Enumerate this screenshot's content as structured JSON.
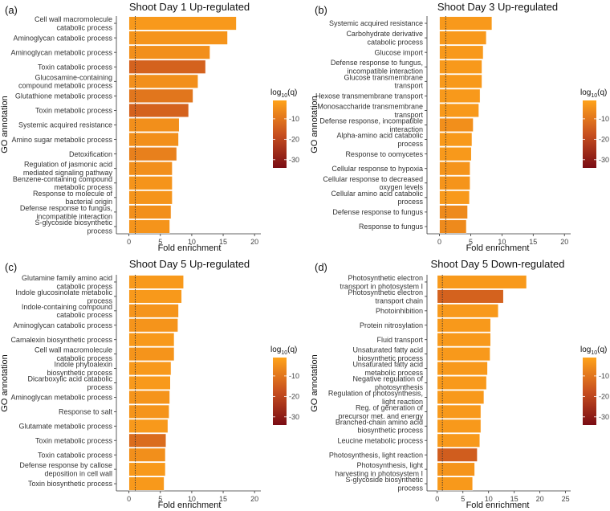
{
  "figure": {
    "y_axis_title": "GO annotation",
    "x_axis_title": "Fold enrichment"
  },
  "colorbar": {
    "title_prefix": "log",
    "title_sub": "10",
    "title_suffix": "(q)",
    "ticks": [
      -10,
      -20,
      -30
    ],
    "range": [
      -34,
      -1
    ],
    "colors": {
      "low": "#7a0c14",
      "mid": "#c8501f",
      "high": "#ffa31a"
    }
  },
  "colors": {
    "bar_stroke": "#ffffff",
    "ref_line": "#333333",
    "axis": "#333333"
  },
  "chart_data": [
    {
      "type": "bar",
      "orientation": "horizontal",
      "panel_label": "(a)",
      "title": "Shoot Day 1 Up-regulated",
      "xlabel": "Fold enrichment",
      "ylabel": "GO annotation",
      "xlim": [
        -2,
        21
      ],
      "xticks": [
        0,
        5,
        10,
        15,
        20
      ],
      "reference_line": 1,
      "categories": [
        [
          "Cell wall macromolecule",
          "catabolic process"
        ],
        [
          "Aminoglycan catabolic process"
        ],
        [
          "Aminoglycan metabolic process"
        ],
        [
          "Toxin catabolic process"
        ],
        [
          "Glucosamine-containing",
          "compound metabolic process"
        ],
        [
          "Glutathione metabolic process"
        ],
        [
          "Toxin metabolic process"
        ],
        [
          "Systemic acquired resistance"
        ],
        [
          "Amino sugar metabolic process"
        ],
        [
          "Detoxification"
        ],
        [
          "Regulation of jasmonic acid",
          "mediated signaling pathway"
        ],
        [
          "Benzene-containing compound",
          "metabolic process"
        ],
        [
          "Response to molecule of",
          "bacterial origin"
        ],
        [
          "Defense response to fungus,",
          "incompatible interaction"
        ],
        [
          "S-glycoside biosynthetic",
          "process"
        ]
      ],
      "values": [
        17.1,
        15.7,
        12.9,
        12.2,
        11.0,
        10.2,
        9.5,
        8.0,
        7.9,
        7.6,
        6.9,
        6.9,
        6.9,
        6.7,
        6.5
      ],
      "log10q": [
        -3,
        -4,
        -5,
        -14,
        -5,
        -10,
        -14,
        -5,
        -5,
        -8,
        -5,
        -4,
        -4,
        -5,
        -4
      ]
    },
    {
      "type": "bar",
      "orientation": "horizontal",
      "panel_label": "(b)",
      "title": "Shoot Day 3 Up-regulated",
      "xlabel": "Fold enrichment",
      "ylabel": "GO annotation",
      "xlim": [
        -2,
        21
      ],
      "xticks": [
        0,
        5,
        10,
        15,
        20
      ],
      "reference_line": 1,
      "categories": [
        [
          "Systemic acquired resistance"
        ],
        [
          "Carbohydrate derivative",
          "catabolic process"
        ],
        [
          "Glucose import"
        ],
        [
          "Defense response to fungus,",
          "incompatible interaction"
        ],
        [
          "Glucose transmembrane",
          "transport"
        ],
        [
          "Hexose transmembrane transport"
        ],
        [
          "Monosaccharide transmembrane",
          "transport"
        ],
        [
          "Defense response, incompatible",
          "interaction"
        ],
        [
          "Alpha-amino acid catabolic",
          "process"
        ],
        [
          "Response to oomycetes"
        ],
        [
          "Cellular response to hypoxia"
        ],
        [
          "Cellular response to decreased",
          "oxygen levels"
        ],
        [
          "Cellular amino acid catabolic",
          "process"
        ],
        [
          "Defense response to fungus"
        ],
        [
          "Response to fungus"
        ]
      ],
      "values": [
        8.4,
        7.5,
        7.0,
        6.8,
        6.8,
        6.5,
        6.3,
        5.4,
        5.2,
        5.1,
        4.9,
        4.9,
        4.8,
        4.5,
        4.3
      ],
      "log10q": [
        -3,
        -3,
        -3,
        -3,
        -3,
        -3,
        -3,
        -5,
        -3,
        -3,
        -4,
        -4,
        -3,
        -6,
        -6
      ]
    },
    {
      "type": "bar",
      "orientation": "horizontal",
      "panel_label": "(c)",
      "title": "Shoot Day 5 Up-regulated",
      "xlabel": "Fold enrichment",
      "ylabel": "GO annotation",
      "xlim": [
        -2,
        21
      ],
      "xticks": [
        0,
        5,
        10,
        15,
        20
      ],
      "reference_line": 1,
      "categories": [
        [
          "Glutamine family amino acid",
          "catabolic process"
        ],
        [
          "Indole glucosinolate metabolic",
          "process"
        ],
        [
          "Indole-containing compound",
          "catabolic process"
        ],
        [
          "Aminoglycan catabolic process"
        ],
        [
          "Camalexin biosynthetic process"
        ],
        [
          "Cell wall macromolecule",
          "catabolic process"
        ],
        [
          "Indole phytoalexin",
          "biosynthetic process"
        ],
        [
          "Dicarboxylic acid catabolic",
          "process"
        ],
        [
          "Aminoglycan metabolic process"
        ],
        [
          "Response to salt"
        ],
        [
          "Glutamate metabolic process"
        ],
        [
          "Toxin metabolic process"
        ],
        [
          "Toxin catabolic process"
        ],
        [
          "Defense response by callose",
          "deposition in cell wall"
        ],
        [
          "Toxin biosynthetic process"
        ]
      ],
      "values": [
        8.7,
        8.4,
        7.9,
        7.8,
        7.2,
        7.2,
        6.7,
        6.6,
        6.5,
        6.4,
        6.2,
        5.9,
        5.8,
        5.8,
        5.6
      ],
      "log10q": [
        -3,
        -3,
        -4,
        -4,
        -3,
        -4,
        -3,
        -3,
        -4,
        -4,
        -3,
        -12,
        -5,
        -3,
        -3
      ]
    },
    {
      "type": "bar",
      "orientation": "horizontal",
      "panel_label": "(d)",
      "title": "Shoot Day 5 Down-regulated",
      "xlabel": "Fold enrichment",
      "ylabel": "GO annotation",
      "xlim": [
        -2,
        26
      ],
      "xticks": [
        0,
        5,
        10,
        15,
        20,
        25
      ],
      "reference_line": 1,
      "categories": [
        [
          "Photosynthetic electron",
          "transport in photosystem I"
        ],
        [
          "Photosynthetic electron",
          "transport chain"
        ],
        [
          "Photoinhibition"
        ],
        [
          "Protein nitrosylation"
        ],
        [
          "Fluid transport"
        ],
        [
          "Unsaturated fatty acid",
          "biosynthetic process"
        ],
        [
          "Unsaturated fatty acid",
          "metabolic process"
        ],
        [
          "Negative regulation of",
          "photosynthesis"
        ],
        [
          "Regulation of photosynthesis,",
          "light reaction"
        ],
        [
          "Reg. of generation of",
          "precursor met. and energy"
        ],
        [
          "Branched-chain amino acid",
          "biosynthetic process"
        ],
        [
          "Leucine metabolic process"
        ],
        [
          "Photosynthesis, light reaction"
        ],
        [
          "Photosynthesis, light",
          "harvesting in photosystem I"
        ],
        [
          "S-glycoside biosynthetic",
          "process"
        ]
      ],
      "values": [
        17.4,
        12.9,
        11.9,
        10.4,
        10.4,
        10.3,
        9.8,
        9.6,
        9.1,
        8.5,
        8.5,
        8.3,
        7.8,
        7.3,
        6.9
      ],
      "log10q": [
        -3,
        -14,
        -3,
        -3,
        -3,
        -3,
        -3,
        -3,
        -3,
        -3,
        -3,
        -3,
        -15,
        -4,
        -3
      ]
    }
  ]
}
